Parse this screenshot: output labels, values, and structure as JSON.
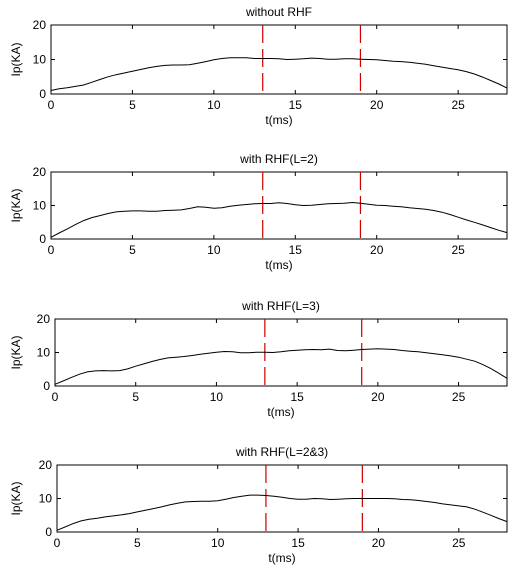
{
  "figure": {
    "background": "#ffffff",
    "line_color": "#000000",
    "marker_color": "#cc0000"
  },
  "chart_data": [
    {
      "type": "line",
      "title": "without RHF",
      "xlabel": "t(ms)",
      "ylabel": "Ip(KA)",
      "xlim": [
        0,
        28
      ],
      "ylim": [
        0,
        20
      ],
      "xticks": [
        0,
        5,
        10,
        15,
        20,
        25
      ],
      "yticks": [
        0,
        10,
        20
      ],
      "grid": false,
      "vlines": [
        13,
        19
      ],
      "series": [
        {
          "x": [
            0,
            0.5,
            1,
            1.5,
            2,
            2.5,
            3,
            3.5,
            4,
            4.5,
            5,
            5.5,
            6,
            6.5,
            7,
            7.5,
            8,
            8.5,
            9,
            9.5,
            10,
            10.5,
            11,
            11.5,
            12,
            12.5,
            13,
            13.5,
            14,
            14.5,
            15,
            15.5,
            16,
            16.5,
            17,
            17.5,
            18,
            18.5,
            19,
            19.5,
            20,
            20.5,
            21,
            21.5,
            22,
            22.5,
            23,
            23.5,
            24,
            24.5,
            25,
            25.5,
            26,
            26.5,
            27,
            27.5,
            28
          ],
          "values": [
            1,
            1.5,
            1.8,
            2.2,
            2.6,
            3.4,
            4.2,
            5,
            5.6,
            6.1,
            6.6,
            7.1,
            7.6,
            8,
            8.3,
            8.4,
            8.4,
            8.5,
            8.9,
            9.4,
            9.9,
            10.3,
            10.5,
            10.5,
            10.5,
            10.3,
            10.3,
            10.3,
            10.2,
            10,
            10.1,
            10.2,
            10.4,
            10.3,
            10.1,
            10.1,
            10.2,
            10.2,
            10.1,
            10,
            9.9,
            9.7,
            9.5,
            9.4,
            9.2,
            8.9,
            8.6,
            8.2,
            7.8,
            7.4,
            7,
            6.5,
            5.8,
            4.9,
            3.9,
            2.9,
            1.7
          ]
        }
      ]
    },
    {
      "type": "line",
      "title": "with RHF(L=2)",
      "xlabel": "t(ms)",
      "ylabel": "Ip(KA)",
      "xlim": [
        0,
        28
      ],
      "ylim": [
        0,
        20
      ],
      "xticks": [
        0,
        5,
        10,
        15,
        20,
        25
      ],
      "yticks": [
        0,
        10,
        20
      ],
      "grid": false,
      "vlines": [
        13,
        19
      ],
      "series": [
        {
          "x": [
            0,
            0.5,
            1,
            1.5,
            2,
            2.5,
            3,
            3.5,
            4,
            4.5,
            5,
            5.5,
            6,
            6.5,
            7,
            7.5,
            8,
            8.5,
            9,
            9.5,
            10,
            10.5,
            11,
            11.5,
            12,
            12.5,
            13,
            13.5,
            14,
            14.5,
            15,
            15.5,
            16,
            16.5,
            17,
            17.5,
            18,
            18.5,
            19,
            19.5,
            20,
            20.5,
            21,
            21.5,
            22,
            22.5,
            23,
            23.5,
            24,
            24.5,
            25,
            25.5,
            26,
            26.5,
            27,
            27.5,
            28
          ],
          "values": [
            0.5,
            1.8,
            3,
            4.3,
            5.5,
            6.4,
            7,
            7.6,
            8.1,
            8.3,
            8.4,
            8.4,
            8.3,
            8.3,
            8.5,
            8.6,
            8.7,
            9.1,
            9.6,
            9.5,
            9.2,
            9.3,
            9.8,
            10.1,
            10.3,
            10.5,
            10.6,
            10.6,
            10.8,
            10.6,
            10.2,
            10,
            10.1,
            10.3,
            10.5,
            10.6,
            10.7,
            10.9,
            10.7,
            10.4,
            10.1,
            10,
            9.8,
            9.6,
            9.3,
            9.1,
            8.9,
            8.5,
            8,
            7.3,
            6.5,
            5.7,
            5,
            4.2,
            3.4,
            2.6,
            1.9
          ]
        }
      ]
    },
    {
      "type": "line",
      "title": "with RHF(L=3)",
      "xlabel": "t(ms)",
      "ylabel": "Ip(KA)",
      "xlim": [
        0,
        28
      ],
      "ylim": [
        0,
        20
      ],
      "xticks": [
        0,
        5,
        10,
        15,
        20,
        25
      ],
      "yticks": [
        0,
        10,
        20
      ],
      "grid": false,
      "vlines": [
        13,
        19
      ],
      "series": [
        {
          "x": [
            0,
            0.5,
            1,
            1.5,
            2,
            2.5,
            3,
            3.5,
            4,
            4.5,
            5,
            5.5,
            6,
            6.5,
            7,
            7.5,
            8,
            8.5,
            9,
            9.5,
            10,
            10.5,
            11,
            11.5,
            12,
            12.5,
            13,
            13.5,
            14,
            14.5,
            15,
            15.5,
            16,
            16.5,
            17,
            17.5,
            18,
            18.5,
            19,
            19.5,
            20,
            20.5,
            21,
            21.5,
            22,
            22.5,
            23,
            23.5,
            24,
            24.5,
            25,
            25.5,
            26,
            26.5,
            27,
            27.5,
            28
          ],
          "values": [
            0.5,
            1.5,
            2.5,
            3.5,
            4.2,
            4.5,
            4.6,
            4.5,
            4.6,
            5.1,
            5.9,
            6.6,
            7.3,
            7.9,
            8.4,
            8.6,
            8.8,
            9.1,
            9.5,
            9.8,
            10.1,
            10.3,
            10.2,
            9.9,
            9.9,
            10.1,
            10.1,
            10,
            10.2,
            10.5,
            10.7,
            10.8,
            10.9,
            10.8,
            11,
            10.6,
            10.5,
            10.7,
            10.9,
            11,
            11.1,
            11,
            10.9,
            10.6,
            10.4,
            10.2,
            9.9,
            9.6,
            9.3,
            9,
            8.6,
            8,
            7.4,
            6.4,
            5.2,
            3.8,
            2.3
          ]
        }
      ]
    },
    {
      "type": "line",
      "title": "with RHF(L=2&3)",
      "xlabel": "t(ms)",
      "ylabel": "Ip(KA)",
      "xlim": [
        0,
        28
      ],
      "ylim": [
        0,
        20
      ],
      "xticks": [
        0,
        5,
        10,
        15,
        20,
        25
      ],
      "yticks": [
        0,
        10,
        20
      ],
      "grid": false,
      "vlines": [
        13,
        19
      ],
      "series": [
        {
          "x": [
            0,
            0.5,
            1,
            1.5,
            2,
            2.5,
            3,
            3.5,
            4,
            4.5,
            5,
            5.5,
            6,
            6.5,
            7,
            7.5,
            8,
            8.5,
            9,
            9.5,
            10,
            10.5,
            11,
            11.5,
            12,
            12.5,
            13,
            13.5,
            14,
            14.5,
            15,
            15.5,
            16,
            16.5,
            17,
            17.5,
            18,
            18.5,
            19,
            19.5,
            20,
            20.5,
            21,
            21.5,
            22,
            22.5,
            23,
            23.5,
            24,
            24.5,
            25,
            25.5,
            26,
            26.5,
            27,
            27.5,
            28
          ],
          "values": [
            0.5,
            1.5,
            2.5,
            3.3,
            3.8,
            4.1,
            4.5,
            4.8,
            5.1,
            5.5,
            6,
            6.5,
            7,
            7.5,
            8.1,
            8.6,
            9,
            9.1,
            9.2,
            9.2,
            9.3,
            9.8,
            10.3,
            10.7,
            11,
            11,
            10.9,
            10.7,
            10.4,
            10,
            9.8,
            9.8,
            10,
            9.9,
            9.7,
            9.8,
            9.9,
            10,
            10,
            10,
            10,
            10,
            9.9,
            9.7,
            9.6,
            9.4,
            9.1,
            8.8,
            8.4,
            8.1,
            7.8,
            7.5,
            6.8,
            5.9,
            5,
            4,
            3.1
          ]
        }
      ]
    }
  ]
}
